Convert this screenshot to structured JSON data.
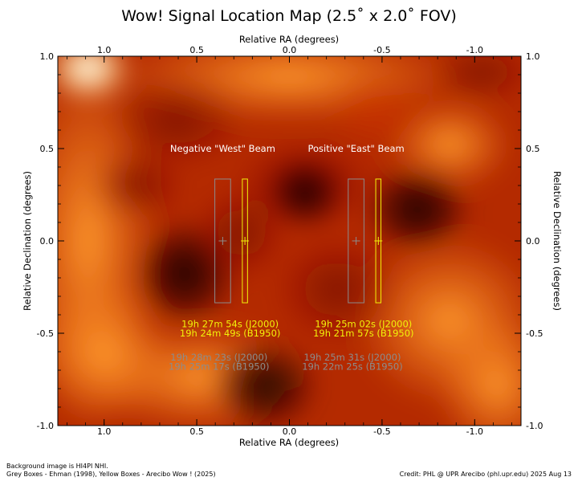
{
  "chart_data": {
    "type": "heatmap",
    "title": "Wow! Signal Location Map (2.5˚ x 2.0˚ FOV)",
    "xlabel": "Relative RA (degrees)",
    "ylabel": "Relative Declination (degrees)",
    "xlim": [
      1.25,
      -1.25
    ],
    "ylim": [
      -1.0,
      1.0
    ],
    "x_ticks": [
      1.0,
      0.5,
      0.0,
      -0.5,
      -1.0
    ],
    "x_tick_labels": [
      "1.0",
      "0.5",
      "0.0",
      "-0.5",
      "-1.0"
    ],
    "y_ticks": [
      1.0,
      0.5,
      0.0,
      -0.5,
      -1.0
    ],
    "y_tick_labels": [
      "1.0",
      "0.5",
      "0.0",
      "-0.5",
      "-1.0"
    ],
    "colormap": "gist_heat",
    "beam_labels": [
      {
        "text": "Negative \"West\" Beam",
        "x": 0.36,
        "y": 0.5
      },
      {
        "text": "Positive \"East\" Beam",
        "x": -0.36,
        "y": 0.5
      }
    ],
    "boxes": [
      {
        "group": "grey",
        "ra": 0.36,
        "dec": 0.0,
        "width": 0.085,
        "height": 0.67
      },
      {
        "group": "yellow",
        "ra": 0.24,
        "dec": 0.0,
        "width": 0.028,
        "height": 0.67
      },
      {
        "group": "grey",
        "ra": -0.36,
        "dec": 0.0,
        "width": 0.085,
        "height": 0.67
      },
      {
        "group": "yellow",
        "ra": -0.48,
        "dec": 0.0,
        "width": 0.028,
        "height": 0.67
      }
    ],
    "coord_labels": [
      {
        "group": "yellow",
        "x": 0.32,
        "y": -0.45,
        "text": "19h 27m 54s (J2000)"
      },
      {
        "group": "yellow",
        "x": 0.32,
        "y": -0.5,
        "text": "19h 24m 49s (B1950)"
      },
      {
        "group": "yellow",
        "x": -0.4,
        "y": -0.45,
        "text": "19h 25m 02s (J2000)"
      },
      {
        "group": "yellow",
        "x": -0.4,
        "y": -0.5,
        "text": "19h 21m 57s (B1950)"
      },
      {
        "group": "grey",
        "x": 0.38,
        "y": -0.63,
        "text": "19h 28m 23s (J2000)"
      },
      {
        "group": "grey",
        "x": 0.38,
        "y": -0.68,
        "text": "19h 25m 17s (B1950)"
      },
      {
        "group": "grey",
        "x": -0.34,
        "y": -0.63,
        "text": "19h 25m 31s (J2000)"
      },
      {
        "group": "grey",
        "x": -0.34,
        "y": -0.68,
        "text": "19h 22m 25s (B1950)"
      }
    ],
    "colors": {
      "yellow": "#f2f20a",
      "grey": "#8c8c8c",
      "beam_label": "#ffffff"
    }
  },
  "footer": {
    "line1": "Background image is HI4PI NHI.",
    "line2": "Grey Boxes - Ehman (1998), Yellow Boxes - Arecibo Wow ! (2025)",
    "credit": "Credit: PHL @ UPR Arecibo (phl.upr.edu) 2025 Aug 13"
  }
}
